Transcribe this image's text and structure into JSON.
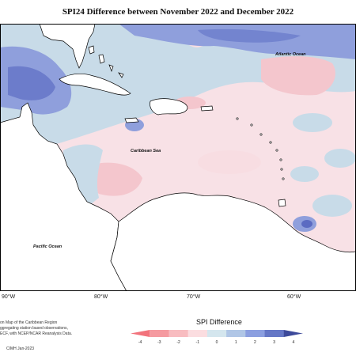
{
  "title": "SPI24 Difference between November 2022 and December 2022",
  "labels": {
    "atlantic": "Atlantic Ocean",
    "caribbean": "Caribbean Sea",
    "pacific": "Pacific Ocean"
  },
  "longitudes": [
    "90°W",
    "80°W",
    "70°W",
    "60°W"
  ],
  "credits": [
    "on Map of the Caribbean Region",
    "ggregating station based observations,",
    "ECF, with NCEP/NCAR Reanalysis Data.",
    "CIMH Jan-2023"
  ],
  "legend": {
    "title": "SPI Difference",
    "ticks": [
      "-4",
      "-3",
      "-2",
      "-1",
      "0",
      "1",
      "2",
      "3",
      "4"
    ],
    "colors": [
      "#f2737c",
      "#f59aa0",
      "#f8bcc0",
      "#fbdde0",
      "#d4e6ee",
      "#b0c6e6",
      "#8b9fe0",
      "#6577c6",
      "#3d4a9a"
    ]
  },
  "colors": {
    "land": "#ffffff",
    "light_blue": "#c3d8e6",
    "mid_blue": "#8f9fdc",
    "dark_blue": "#6475cc",
    "light_pink": "#f8dde2",
    "pink": "#f4c6cd"
  }
}
